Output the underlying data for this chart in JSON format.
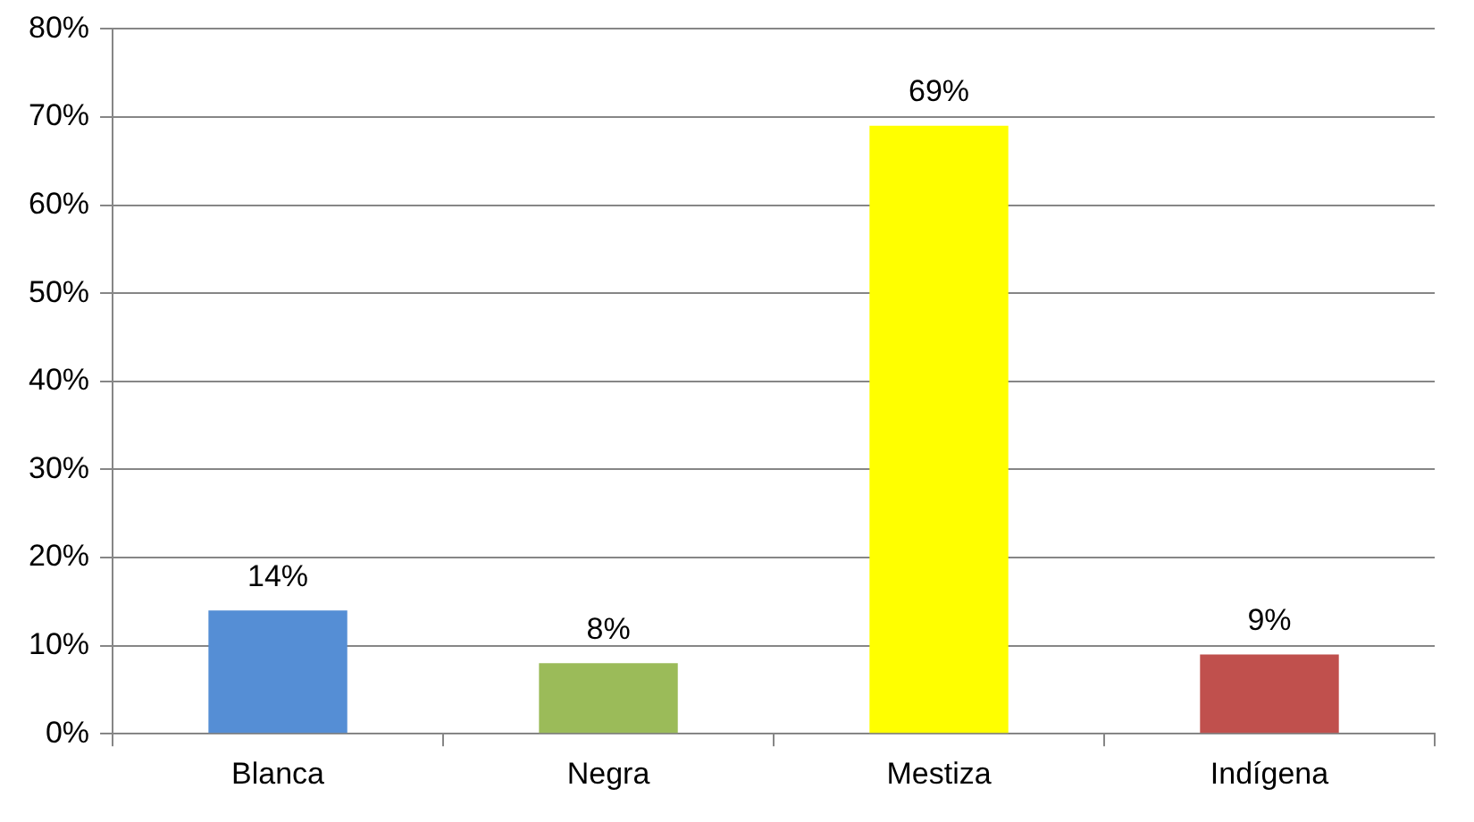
{
  "chart_data": {
    "type": "bar",
    "categories": [
      "Blanca",
      "Negra",
      "Mestiza",
      "Indígena"
    ],
    "values": [
      14,
      8,
      69,
      9
    ],
    "colors": [
      "#558ed5",
      "#9bbb59",
      "#ffff00",
      "#c0504d"
    ],
    "value_labels": [
      "14%",
      "8%",
      "69%",
      "9%"
    ],
    "ylim": [
      0,
      80
    ],
    "yticks": [
      {
        "value": 0,
        "label": "0%"
      },
      {
        "value": 10,
        "label": "10%"
      },
      {
        "value": 20,
        "label": "20%"
      },
      {
        "value": 30,
        "label": "30%"
      },
      {
        "value": 40,
        "label": "40%"
      },
      {
        "value": 50,
        "label": "50%"
      },
      {
        "value": 60,
        "label": "60%"
      },
      {
        "value": 70,
        "label": "70%"
      },
      {
        "value": 80,
        "label": "80%"
      }
    ],
    "grid": "y",
    "legend": false
  }
}
